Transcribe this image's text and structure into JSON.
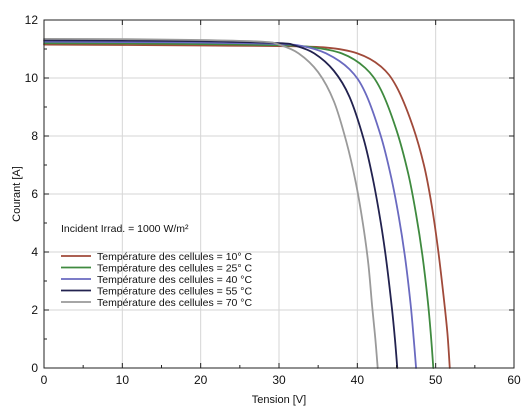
{
  "chart_data": {
    "type": "line",
    "title": "",
    "xlabel": "Tension [V]",
    "ylabel": "Courant [A]",
    "xlim": [
      0,
      60
    ],
    "ylim": [
      0,
      12
    ],
    "xticks": [
      "0",
      "10",
      "20",
      "30",
      "40",
      "50",
      "60"
    ],
    "yticks": [
      "0",
      "2",
      "4",
      "6",
      "8",
      "10",
      "12"
    ],
    "grid": true,
    "legend_position": "bottom-left",
    "annotation": "Incident Irrad. = 1000 W/m²",
    "series": [
      {
        "name": "Température des cellules = 10° C",
        "color": "#a04a3a",
        "x": [
          0,
          10,
          20,
          30,
          36,
          40,
          43,
          45,
          47,
          48.5,
          49.5,
          50.3,
          51.0,
          51.5,
          51.8
        ],
        "y": [
          11.15,
          11.14,
          11.12,
          11.1,
          11.05,
          10.85,
          10.4,
          9.7,
          8.4,
          7.0,
          5.6,
          4.1,
          2.5,
          1.2,
          0
        ]
      },
      {
        "name": "Température des cellules = 25° C",
        "color": "#3f8a3f",
        "x": [
          0,
          10,
          20,
          30,
          34,
          38,
          41,
          43,
          45,
          46.5,
          47.5,
          48.3,
          49.0,
          49.4,
          49.7
        ],
        "y": [
          11.2,
          11.19,
          11.17,
          11.13,
          11.07,
          10.85,
          10.35,
          9.6,
          8.2,
          6.7,
          5.3,
          3.9,
          2.3,
          1.1,
          0
        ]
      },
      {
        "name": "Température des cellules = 40 °C",
        "color": "#6a6ac0",
        "x": [
          0,
          10,
          20,
          30,
          33,
          36,
          39,
          41,
          43,
          44.3,
          45.3,
          46.1,
          46.8,
          47.2,
          47.5
        ],
        "y": [
          11.25,
          11.24,
          11.22,
          11.17,
          11.1,
          10.85,
          10.3,
          9.5,
          8.0,
          6.6,
          5.2,
          3.8,
          2.2,
          1.0,
          0
        ]
      },
      {
        "name": "Température des cellules = 55 °C",
        "color": "#22224f",
        "x": [
          0,
          10,
          20,
          30,
          32,
          34.5,
          37,
          39,
          40.8,
          42,
          43,
          43.7,
          44.4,
          44.8,
          45.1
        ],
        "y": [
          11.3,
          11.29,
          11.27,
          11.2,
          11.12,
          10.85,
          10.25,
          9.35,
          7.9,
          6.5,
          5.0,
          3.7,
          2.1,
          1.0,
          0
        ]
      },
      {
        "name": "Température des cellules = 70 °C",
        "color": "#9a9a9a",
        "x": [
          0,
          10,
          20,
          28,
          30,
          32.5,
          35,
          37,
          38.6,
          39.8,
          40.7,
          41.4,
          41.9,
          42.3,
          42.6
        ],
        "y": [
          11.35,
          11.34,
          11.31,
          11.25,
          11.15,
          10.85,
          10.2,
          9.2,
          7.8,
          6.4,
          5.0,
          3.6,
          2.1,
          1.0,
          0
        ]
      }
    ]
  }
}
